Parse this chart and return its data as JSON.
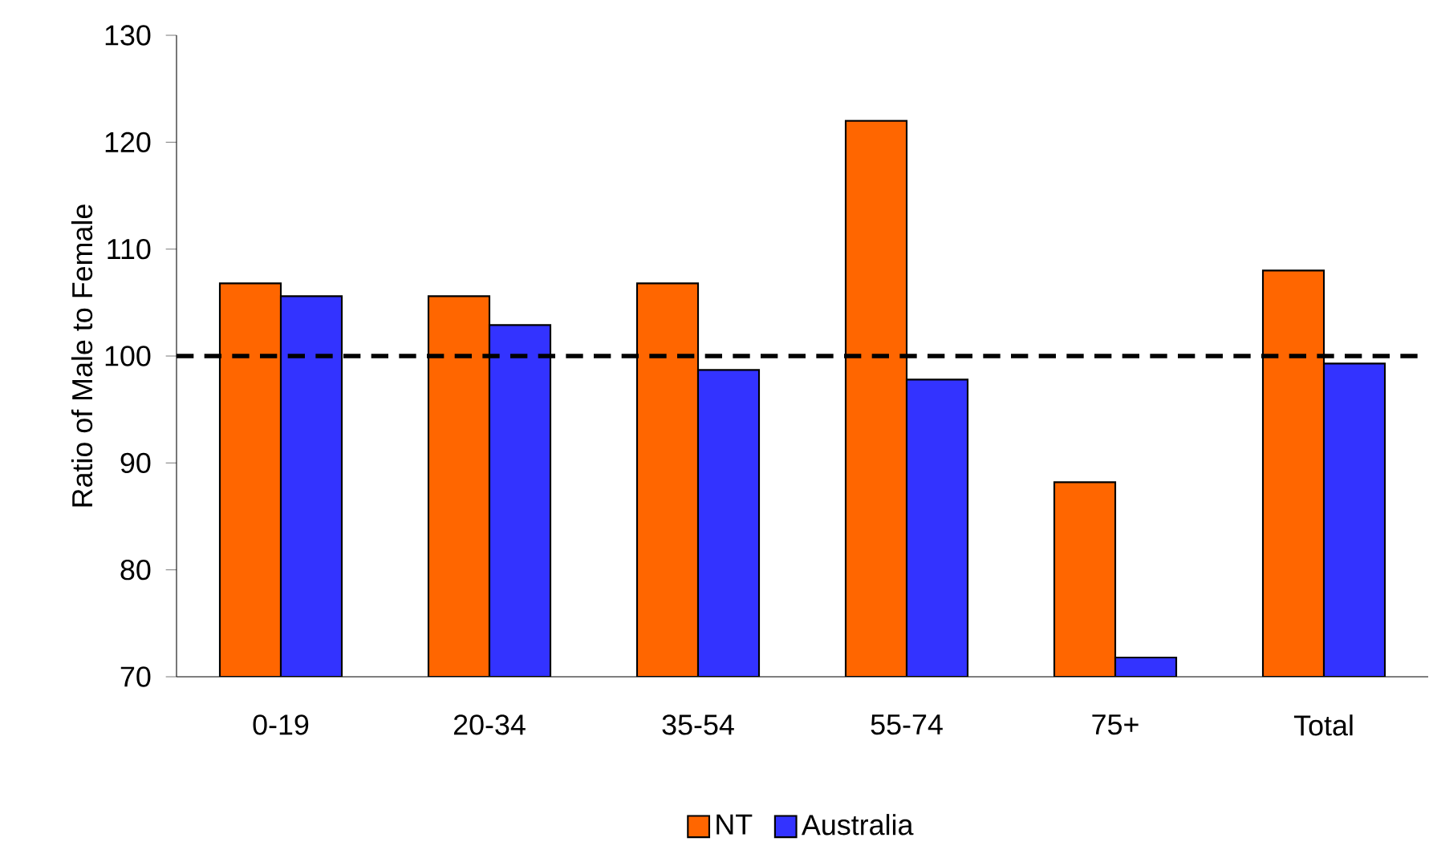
{
  "chart_data": {
    "type": "bar",
    "ylabel": "Ratio of Male to Female",
    "categories": [
      "0-19",
      "20-34",
      "35-54",
      "55-74",
      "75+",
      "Total"
    ],
    "series": [
      {
        "name": "NT",
        "color": "#ff6600",
        "values": [
          106.8,
          105.6,
          106.8,
          122.0,
          88.2,
          108.0
        ]
      },
      {
        "name": "Australia",
        "color": "#3333ff",
        "values": [
          105.6,
          102.9,
          98.7,
          97.8,
          71.8,
          99.3
        ]
      }
    ],
    "ylim": [
      70,
      130
    ],
    "yticks": [
      70,
      80,
      90,
      100,
      110,
      120,
      130
    ],
    "ref_lines": [
      {
        "axis": "y",
        "value": 100,
        "line_style": "dashed",
        "color": "#000000"
      }
    ],
    "legend": "bottom"
  }
}
